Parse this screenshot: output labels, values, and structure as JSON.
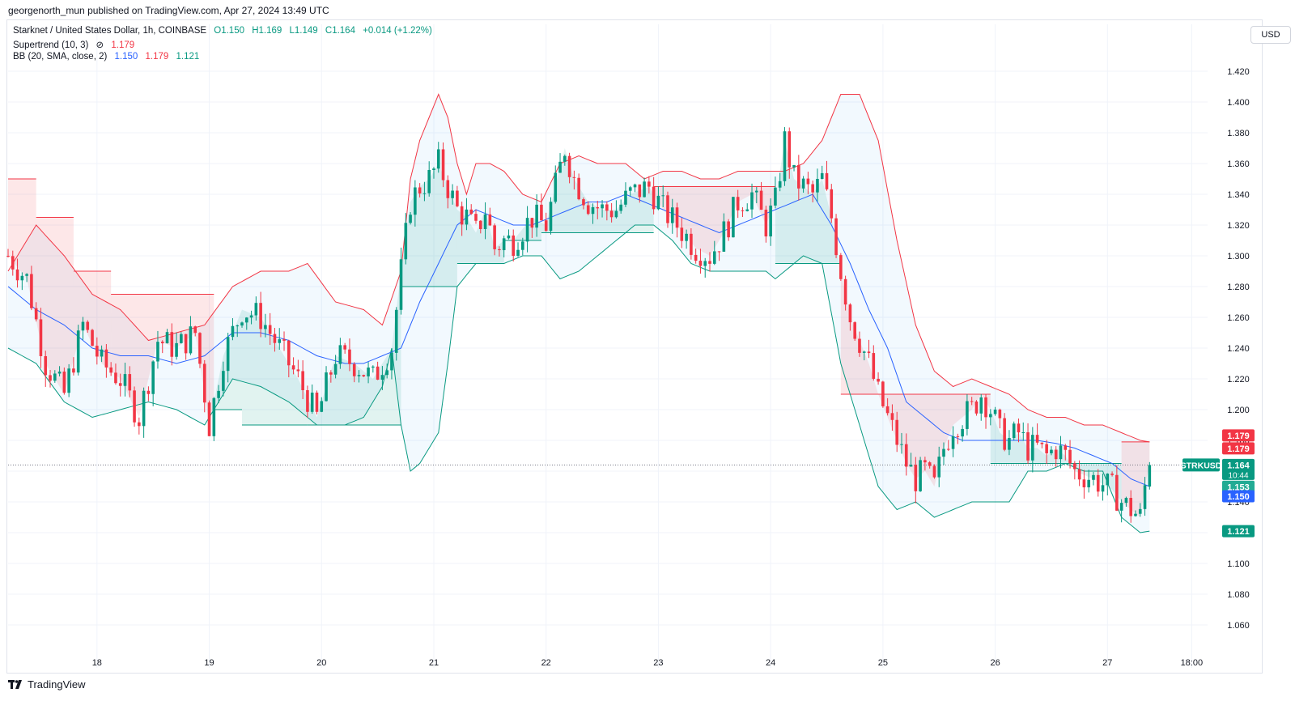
{
  "publisher": "georgenorth_mun published on TradingView.com, Apr 27, 2024 13:49 UTC",
  "legend": {
    "symbol": "Starknet / United States Dollar, 1h, COINBASE",
    "open": "O1.150",
    "high": "H1.169",
    "low": "L1.149",
    "close": "C1.164",
    "change": "+0.014 (+1.22%)",
    "supertrend_label": "Supertrend (10, 3)",
    "supertrend_icon": "eye-off-icon",
    "supertrend_value": "1.179",
    "bb_label": "BB (20, SMA, close, 2)",
    "bb_basis": "1.150",
    "bb_upper": "1.179",
    "bb_lower": "1.121"
  },
  "currency_button": "USD",
  "brand": "TradingView",
  "colors": {
    "up": "#089981",
    "down": "#f23645",
    "basis": "#2962ff",
    "upper": "#f23645",
    "lower": "#089981",
    "st_up_fill": "rgba(8,153,129,0.12)",
    "st_down_fill": "rgba(242,54,69,0.12)",
    "bb_fill": "rgba(33,150,243,0.06)"
  },
  "chart_data": {
    "type": "candlestick",
    "title": "Starknet / United States Dollar, 1h, COINBASE",
    "ylim": [
      1.05,
      1.43
    ],
    "y_ticks": [
      "1.060",
      "1.080",
      "1.100",
      "1.120",
      "1.140",
      "1.160",
      "1.180",
      "1.200",
      "1.220",
      "1.240",
      "1.260",
      "1.280",
      "1.300",
      "1.320",
      "1.340",
      "1.360",
      "1.380",
      "1.400",
      "1.420"
    ],
    "x_ticks": [
      {
        "label": "18",
        "hour": 19
      },
      {
        "label": "19",
        "hour": 43
      },
      {
        "label": "20",
        "hour": 67
      },
      {
        "label": "21",
        "hour": 91
      },
      {
        "label": "22",
        "hour": 115
      },
      {
        "label": "23",
        "hour": 139
      },
      {
        "label": "24",
        "hour": 163
      },
      {
        "label": "25",
        "hour": 187
      },
      {
        "label": "26",
        "hour": 211
      },
      {
        "label": "27",
        "hour": 235
      },
      {
        "label": "18:00",
        "hour": 253
      }
    ],
    "hour_count": 250,
    "close_key": [
      [
        0,
        1.3
      ],
      [
        4,
        1.285
      ],
      [
        8,
        1.23
      ],
      [
        12,
        1.21
      ],
      [
        16,
        1.255
      ],
      [
        20,
        1.23
      ],
      [
        24,
        1.22
      ],
      [
        28,
        1.195
      ],
      [
        32,
        1.245
      ],
      [
        36,
        1.24
      ],
      [
        40,
        1.25
      ],
      [
        43,
        1.19
      ],
      [
        46,
        1.235
      ],
      [
        50,
        1.265
      ],
      [
        54,
        1.26
      ],
      [
        58,
        1.24
      ],
      [
        62,
        1.22
      ],
      [
        66,
        1.195
      ],
      [
        70,
        1.235
      ],
      [
        74,
        1.23
      ],
      [
        78,
        1.22
      ],
      [
        82,
        1.24
      ],
      [
        84,
        1.29
      ],
      [
        86,
        1.335
      ],
      [
        88,
        1.345
      ],
      [
        90,
        1.35
      ],
      [
        92,
        1.36
      ],
      [
        94,
        1.345
      ],
      [
        96,
        1.33
      ],
      [
        98,
        1.325
      ],
      [
        100,
        1.315
      ],
      [
        102,
        1.33
      ],
      [
        104,
        1.305
      ],
      [
        106,
        1.31
      ],
      [
        108,
        1.31
      ],
      [
        112,
        1.325
      ],
      [
        115,
        1.32
      ],
      [
        117,
        1.345
      ],
      [
        119,
        1.37
      ],
      [
        121,
        1.35
      ],
      [
        124,
        1.335
      ],
      [
        127,
        1.33
      ],
      [
        130,
        1.33
      ],
      [
        133,
        1.34
      ],
      [
        137,
        1.345
      ],
      [
        140,
        1.33
      ],
      [
        143,
        1.32
      ],
      [
        147,
        1.305
      ],
      [
        150,
        1.3
      ],
      [
        153,
        1.315
      ],
      [
        156,
        1.335
      ],
      [
        159,
        1.34
      ],
      [
        162,
        1.32
      ],
      [
        164,
        1.335
      ],
      [
        166,
        1.375
      ],
      [
        168,
        1.35
      ],
      [
        170,
        1.345
      ],
      [
        172,
        1.34
      ],
      [
        174,
        1.35
      ],
      [
        176,
        1.325
      ],
      [
        178,
        1.29
      ],
      [
        180,
        1.26
      ],
      [
        182,
        1.245
      ],
      [
        184,
        1.23
      ],
      [
        186,
        1.21
      ],
      [
        188,
        1.195
      ],
      [
        190,
        1.18
      ],
      [
        192,
        1.165
      ],
      [
        194,
        1.155
      ],
      [
        196,
        1.16
      ],
      [
        198,
        1.15
      ],
      [
        200,
        1.175
      ],
      [
        202,
        1.19
      ],
      [
        206,
        1.2
      ],
      [
        208,
        1.21
      ],
      [
        210,
        1.2
      ],
      [
        212,
        1.185
      ],
      [
        214,
        1.18
      ],
      [
        216,
        1.185
      ],
      [
        218,
        1.175
      ],
      [
        220,
        1.175
      ],
      [
        222,
        1.17
      ],
      [
        224,
        1.175
      ],
      [
        226,
        1.17
      ],
      [
        228,
        1.16
      ],
      [
        232,
        1.155
      ],
      [
        236,
        1.148
      ],
      [
        238,
        1.14
      ],
      [
        240,
        1.135
      ],
      [
        242,
        1.13
      ],
      [
        243,
        1.15
      ],
      [
        244,
        1.164
      ]
    ],
    "upper_key": [
      [
        0,
        1.29
      ],
      [
        6,
        1.32
      ],
      [
        12,
        1.3
      ],
      [
        18,
        1.275
      ],
      [
        24,
        1.265
      ],
      [
        30,
        1.245
      ],
      [
        36,
        1.25
      ],
      [
        42,
        1.255
      ],
      [
        48,
        1.28
      ],
      [
        54,
        1.29
      ],
      [
        60,
        1.29
      ],
      [
        64,
        1.295
      ],
      [
        70,
        1.27
      ],
      [
        76,
        1.265
      ],
      [
        80,
        1.255
      ],
      [
        84,
        1.29
      ],
      [
        86,
        1.35
      ],
      [
        88,
        1.375
      ],
      [
        92,
        1.405
      ],
      [
        94,
        1.39
      ],
      [
        96,
        1.36
      ],
      [
        98,
        1.34
      ],
      [
        100,
        1.36
      ],
      [
        103,
        1.36
      ],
      [
        106,
        1.355
      ],
      [
        110,
        1.34
      ],
      [
        114,
        1.335
      ],
      [
        118,
        1.36
      ],
      [
        122,
        1.365
      ],
      [
        126,
        1.36
      ],
      [
        132,
        1.36
      ],
      [
        136,
        1.35
      ],
      [
        140,
        1.355
      ],
      [
        144,
        1.355
      ],
      [
        148,
        1.35
      ],
      [
        152,
        1.35
      ],
      [
        156,
        1.355
      ],
      [
        160,
        1.355
      ],
      [
        164,
        1.355
      ],
      [
        166,
        1.355
      ],
      [
        170,
        1.36
      ],
      [
        174,
        1.375
      ],
      [
        178,
        1.405
      ],
      [
        182,
        1.405
      ],
      [
        186,
        1.375
      ],
      [
        190,
        1.31
      ],
      [
        194,
        1.255
      ],
      [
        198,
        1.225
      ],
      [
        202,
        1.215
      ],
      [
        206,
        1.22
      ],
      [
        210,
        1.215
      ],
      [
        214,
        1.21
      ],
      [
        218,
        1.2
      ],
      [
        222,
        1.195
      ],
      [
        226,
        1.195
      ],
      [
        230,
        1.19
      ],
      [
        234,
        1.19
      ],
      [
        238,
        1.185
      ],
      [
        242,
        1.18
      ],
      [
        244,
        1.179
      ]
    ],
    "lower_key": [
      [
        0,
        1.24
      ],
      [
        6,
        1.23
      ],
      [
        12,
        1.205
      ],
      [
        18,
        1.195
      ],
      [
        24,
        1.2
      ],
      [
        30,
        1.205
      ],
      [
        36,
        1.2
      ],
      [
        42,
        1.19
      ],
      [
        48,
        1.22
      ],
      [
        54,
        1.215
      ],
      [
        60,
        1.205
      ],
      [
        66,
        1.19
      ],
      [
        72,
        1.19
      ],
      [
        76,
        1.195
      ],
      [
        80,
        1.215
      ],
      [
        82,
        1.24
      ],
      [
        84,
        1.19
      ],
      [
        86,
        1.16
      ],
      [
        88,
        1.165
      ],
      [
        92,
        1.185
      ],
      [
        94,
        1.23
      ],
      [
        96,
        1.28
      ],
      [
        100,
        1.295
      ],
      [
        106,
        1.295
      ],
      [
        110,
        1.3
      ],
      [
        114,
        1.3
      ],
      [
        118,
        1.285
      ],
      [
        122,
        1.29
      ],
      [
        126,
        1.3
      ],
      [
        130,
        1.31
      ],
      [
        134,
        1.32
      ],
      [
        138,
        1.32
      ],
      [
        142,
        1.31
      ],
      [
        146,
        1.295
      ],
      [
        150,
        1.29
      ],
      [
        154,
        1.29
      ],
      [
        158,
        1.29
      ],
      [
        162,
        1.29
      ],
      [
        164,
        1.285
      ],
      [
        166,
        1.29
      ],
      [
        170,
        1.3
      ],
      [
        174,
        1.295
      ],
      [
        178,
        1.23
      ],
      [
        182,
        1.19
      ],
      [
        186,
        1.15
      ],
      [
        190,
        1.135
      ],
      [
        194,
        1.14
      ],
      [
        198,
        1.13
      ],
      [
        202,
        1.135
      ],
      [
        206,
        1.14
      ],
      [
        210,
        1.14
      ],
      [
        214,
        1.14
      ],
      [
        218,
        1.16
      ],
      [
        222,
        1.16
      ],
      [
        226,
        1.165
      ],
      [
        230,
        1.16
      ],
      [
        234,
        1.16
      ],
      [
        238,
        1.13
      ],
      [
        242,
        1.12
      ],
      [
        244,
        1.121
      ]
    ],
    "basis_key": [
      [
        0,
        1.28
      ],
      [
        6,
        1.265
      ],
      [
        12,
        1.255
      ],
      [
        18,
        1.24
      ],
      [
        24,
        1.235
      ],
      [
        30,
        1.235
      ],
      [
        36,
        1.23
      ],
      [
        42,
        1.235
      ],
      [
        48,
        1.25
      ],
      [
        54,
        1.25
      ],
      [
        60,
        1.245
      ],
      [
        66,
        1.235
      ],
      [
        72,
        1.23
      ],
      [
        76,
        1.23
      ],
      [
        80,
        1.235
      ],
      [
        84,
        1.24
      ],
      [
        88,
        1.27
      ],
      [
        92,
        1.295
      ],
      [
        96,
        1.32
      ],
      [
        100,
        1.33
      ],
      [
        104,
        1.325
      ],
      [
        108,
        1.32
      ],
      [
        112,
        1.32
      ],
      [
        116,
        1.325
      ],
      [
        120,
        1.33
      ],
      [
        124,
        1.335
      ],
      [
        128,
        1.335
      ],
      [
        132,
        1.34
      ],
      [
        136,
        1.335
      ],
      [
        140,
        1.33
      ],
      [
        144,
        1.325
      ],
      [
        148,
        1.32
      ],
      [
        152,
        1.315
      ],
      [
        156,
        1.32
      ],
      [
        160,
        1.325
      ],
      [
        164,
        1.33
      ],
      [
        168,
        1.335
      ],
      [
        172,
        1.34
      ],
      [
        176,
        1.32
      ],
      [
        180,
        1.295
      ],
      [
        184,
        1.265
      ],
      [
        188,
        1.24
      ],
      [
        192,
        1.205
      ],
      [
        196,
        1.195
      ],
      [
        200,
        1.185
      ],
      [
        204,
        1.18
      ],
      [
        208,
        1.18
      ],
      [
        212,
        1.18
      ],
      [
        216,
        1.18
      ],
      [
        220,
        1.18
      ],
      [
        224,
        1.178
      ],
      [
        228,
        1.175
      ],
      [
        232,
        1.17
      ],
      [
        236,
        1.165
      ],
      [
        240,
        1.155
      ],
      [
        244,
        1.15
      ]
    ],
    "supertrend": [
      {
        "dir": "down",
        "from": 0,
        "to": 6,
        "value": 1.35
      },
      {
        "dir": "down",
        "from": 6,
        "to": 14,
        "value": 1.325
      },
      {
        "dir": "down",
        "from": 14,
        "to": 22,
        "value": 1.29
      },
      {
        "dir": "down",
        "from": 22,
        "to": 44,
        "value": 1.275
      },
      {
        "dir": "up",
        "from": 44,
        "to": 50,
        "value": 1.2
      },
      {
        "dir": "up",
        "from": 50,
        "to": 64,
        "value": 1.19
      },
      {
        "dir": "up",
        "from": 64,
        "to": 84,
        "value": 1.19
      },
      {
        "dir": "up",
        "from": 84,
        "to": 96,
        "value": 1.28
      },
      {
        "dir": "up",
        "from": 96,
        "to": 106,
        "value": 1.295
      },
      {
        "dir": "up",
        "from": 106,
        "to": 114,
        "value": 1.31
      },
      {
        "dir": "up",
        "from": 114,
        "to": 138,
        "value": 1.315
      },
      {
        "dir": "down",
        "from": 138,
        "to": 164,
        "value": 1.345
      },
      {
        "dir": "up",
        "from": 164,
        "to": 178,
        "value": 1.295
      },
      {
        "dir": "down",
        "from": 178,
        "to": 210,
        "value": 1.21
      },
      {
        "dir": "up",
        "from": 210,
        "to": 238,
        "value": 1.165
      },
      {
        "dir": "down",
        "from": 238,
        "to": 244,
        "value": 1.179
      }
    ],
    "price_labels": [
      {
        "value": 1.179,
        "text": "1.179",
        "color": "#f23645",
        "offset": -8
      },
      {
        "value": 1.179,
        "text": "1.179",
        "color": "#f23645",
        "offset": 8
      },
      {
        "value": 1.164,
        "text": "1.164",
        "sub": "10:44",
        "color": "#089981",
        "offset": 0
      },
      {
        "value": 1.153,
        "text": "1.153",
        "color": "#22ab94",
        "offset": 6
      },
      {
        "value": 1.15,
        "text": "1.150",
        "color": "#2962ff",
        "offset": 12
      },
      {
        "value": 1.121,
        "text": "1.121",
        "color": "#089981",
        "offset": 0
      }
    ],
    "ticker_label": "STRKUSD",
    "last_price": 1.164
  }
}
